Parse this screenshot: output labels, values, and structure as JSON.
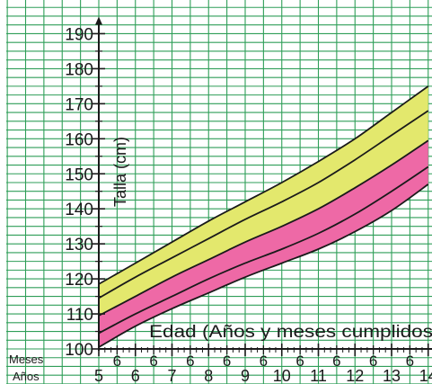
{
  "chart_data": {
    "type": "line",
    "title": "",
    "xlabel": "Edad (Años y meses cumplidos",
    "ylabel": "Talla (cm)",
    "row_labels": {
      "months": "Meses",
      "years": "Años"
    },
    "ylim": [
      100,
      190
    ],
    "yticks": [
      100,
      110,
      120,
      130,
      140,
      150,
      160,
      170,
      180,
      190
    ],
    "xlim": [
      5,
      14
    ],
    "year_labels": [
      "5",
      "6",
      "7",
      "8",
      "9",
      "10",
      "11",
      "12",
      "13",
      "14"
    ],
    "month_label": "6",
    "grid": true,
    "colors": {
      "grid": "#2f9e58",
      "upper_band": "#e3e86d",
      "lower_band": "#ee69a6",
      "lines": "#1a1a1a",
      "axis": "#1a1a1a"
    },
    "series": [
      {
        "values": [
          [
            5,
            118.5
          ],
          [
            6,
            124.5
          ],
          [
            7,
            130.5
          ],
          [
            8,
            136.5
          ],
          [
            9,
            142.0
          ],
          [
            10,
            147.5
          ],
          [
            11,
            153.5
          ],
          [
            12,
            160.0
          ],
          [
            13,
            167.5
          ],
          [
            14,
            175.0
          ]
        ]
      },
      {
        "values": [
          [
            5,
            114.5
          ],
          [
            6,
            120.5
          ],
          [
            7,
            126.0
          ],
          [
            8,
            131.5
          ],
          [
            9,
            137.0
          ],
          [
            10,
            142.0
          ],
          [
            11,
            147.5
          ],
          [
            12,
            154.0
          ],
          [
            13,
            161.0
          ],
          [
            14,
            168.0
          ]
        ]
      },
      {
        "values": [
          [
            5,
            109.5
          ],
          [
            6,
            115.0
          ],
          [
            7,
            120.5
          ],
          [
            8,
            125.5
          ],
          [
            9,
            130.5
          ],
          [
            10,
            135.0
          ],
          [
            11,
            140.0
          ],
          [
            12,
            146.0
          ],
          [
            13,
            152.5
          ],
          [
            14,
            159.5
          ]
        ]
      },
      {
        "values": [
          [
            5,
            104.5
          ],
          [
            6,
            110.0
          ],
          [
            7,
            115.0
          ],
          [
            8,
            120.0
          ],
          [
            9,
            124.5
          ],
          [
            10,
            128.5
          ],
          [
            11,
            133.0
          ],
          [
            12,
            138.5
          ],
          [
            13,
            145.0
          ],
          [
            14,
            152.0
          ]
        ]
      },
      {
        "values": [
          [
            5,
            100.5
          ],
          [
            6,
            106.5
          ],
          [
            7,
            111.5
          ],
          [
            8,
            116.0
          ],
          [
            9,
            120.5
          ],
          [
            10,
            124.5
          ],
          [
            11,
            128.5
          ],
          [
            12,
            133.5
          ],
          [
            13,
            139.5
          ],
          [
            14,
            147.0
          ]
        ]
      }
    ]
  }
}
